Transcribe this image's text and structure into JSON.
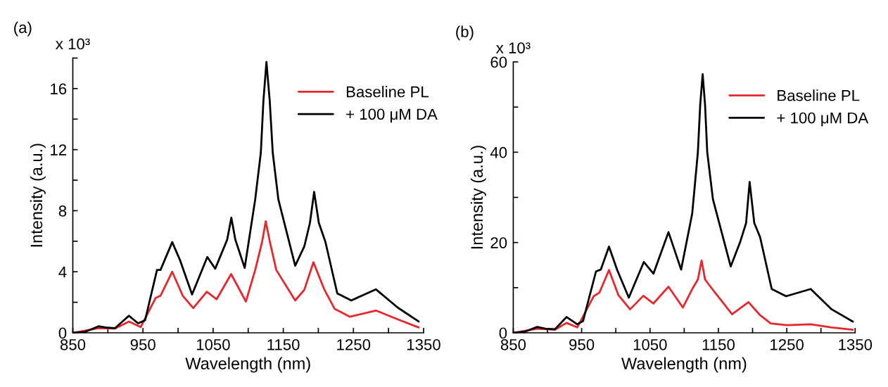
{
  "chart_data": [
    {
      "type": "line",
      "title": "(a)",
      "xlabel": "Wavelength (nm)",
      "ylabel": "Intensity (a.u.)",
      "annotations": [
        "x 10³"
      ],
      "xlim": [
        850,
        1350
      ],
      "xticks": [
        850,
        {
          "value": 900,
          "label": null
        },
        950,
        {
          "value": 1000,
          "label": null
        },
        1050,
        {
          "value": 1100,
          "label": null
        },
        1150,
        {
          "value": 1200,
          "label": null
        },
        1250,
        {
          "value": 1300,
          "label": null
        },
        1350
      ],
      "ylim": [
        0,
        18
      ],
      "yticks": [
        0,
        {
          "value": 2,
          "label": null
        },
        4,
        {
          "value": 6,
          "label": null
        },
        8,
        {
          "value": 10,
          "label": null
        },
        12,
        {
          "value": 14,
          "label": null
        },
        16,
        {
          "value": 18,
          "label": null
        }
      ],
      "grid": false,
      "legend": "top right",
      "marker": "none",
      "line_style": "solid",
      "series": [
        {
          "name": "Baseline PL",
          "color": "#e8262b",
          "x": [
            850,
            886.7,
            910,
            930,
            946.7,
            968,
            975,
            991.7,
            1006.7,
            1021.7,
            1041,
            1055,
            1075.7,
            1096.7,
            1110,
            1120,
            1125,
            1130.7,
            1140,
            1167,
            1180,
            1193,
            1208,
            1223,
            1245,
            1282,
            1313,
            1343
          ],
          "values": [
            0,
            0.31,
            0.28,
            0.74,
            0.38,
            2.28,
            2.43,
            4.0,
            2.43,
            1.62,
            2.69,
            2.2,
            3.85,
            2.05,
            4.12,
            6.0,
            7.31,
            6.0,
            4.12,
            2.12,
            2.82,
            4.62,
            2.89,
            1.58,
            1.05,
            1.46,
            0.89,
            0.35
          ]
        },
        {
          "name": "+ 100 μM DA",
          "color": "#000000",
          "x": [
            850,
            866.7,
            886.7,
            896.7,
            910,
            930,
            943,
            953,
            970,
            975,
            991.7,
            1003,
            1020,
            1041.7,
            1053,
            1070,
            1076,
            1081.7,
            1095,
            1110,
            1118,
            1121.7,
            1126,
            1130.7,
            1135,
            1143,
            1167,
            1180,
            1188,
            1194,
            1200.7,
            1210,
            1227,
            1247,
            1282,
            1313,
            1343
          ],
          "values": [
            0,
            0.05,
            0.43,
            0.35,
            0.3,
            1.12,
            0.62,
            0.82,
            4.12,
            4.12,
            5.94,
            4.74,
            2.51,
            4.97,
            4.2,
            6.1,
            7.54,
            6.1,
            4.25,
            8.74,
            11.8,
            15.2,
            17.74,
            15.2,
            11.8,
            8.74,
            4.4,
            5.66,
            7.2,
            9.23,
            7.2,
            5.97,
            2.58,
            2.12,
            2.85,
            1.66,
            0.74
          ]
        }
      ]
    },
    {
      "type": "line",
      "title": "(b)",
      "xlabel": "Wavelength (nm)",
      "ylabel": "Intensity (a.u.)",
      "annotations": [
        "x 10³"
      ],
      "xlim": [
        850,
        1350
      ],
      "xticks": [
        850,
        {
          "value": 900,
          "label": null
        },
        950,
        {
          "value": 1000,
          "label": null
        },
        1050,
        {
          "value": 1100,
          "label": null
        },
        1150,
        {
          "value": 1200,
          "label": null
        },
        1250,
        {
          "value": 1300,
          "label": null
        },
        1350
      ],
      "ylim": [
        0,
        60
      ],
      "yticks": [
        0,
        {
          "value": 10,
          "label": null
        },
        20,
        {
          "value": 30,
          "label": null
        },
        40,
        {
          "value": 50,
          "label": null
        },
        60
      ],
      "grid": false,
      "legend": "top right",
      "marker": "none",
      "line_style": "solid",
      "series": [
        {
          "name": "Baseline PL",
          "color": "#e8262b",
          "x": [
            850,
            885,
            911,
            928,
            943.6,
            967.6,
            976,
            990,
            1003.6,
            1020.8,
            1040.3,
            1055,
            1077,
            1098,
            1111.7,
            1120,
            1125.4,
            1130.5,
            1141,
            1170,
            1194,
            1211,
            1226.5,
            1250.5,
            1285,
            1315.7,
            1346.6
          ],
          "values": [
            0,
            0.9,
            0.7,
            2.2,
            1.2,
            8.1,
            8.9,
            13.9,
            8.4,
            5.2,
            8.2,
            6.5,
            10.2,
            5.6,
            9.7,
            11.8,
            16.0,
            11.8,
            9.7,
            4.1,
            6.8,
            3.9,
            2.1,
            1.7,
            1.9,
            1.2,
            0.7
          ]
        },
        {
          "name": "+ 100 μM DA",
          "color": "#000000",
          "x": [
            850,
            866,
            885,
            897,
            911,
            928,
            943.6,
            952,
            971,
            978,
            990,
            1002,
            1019,
            1041,
            1055,
            1077,
            1095.5,
            1111.7,
            1120,
            1123.4,
            1127,
            1130.5,
            1133.7,
            1142,
            1168,
            1182,
            1190.5,
            1195.7,
            1202.5,
            1211,
            1228,
            1249,
            1285,
            1315.7,
            1346.6
          ],
          "values": [
            0,
            0.2,
            1.3,
            0.9,
            0.8,
            3.5,
            1.9,
            2.6,
            13.6,
            14.0,
            19.1,
            13.9,
            7.8,
            15.7,
            13.1,
            22.3,
            14.0,
            26.4,
            40,
            50.5,
            57.3,
            50.5,
            40,
            29.6,
            14.7,
            20.2,
            24.3,
            33.4,
            24.3,
            21.2,
            9.7,
            8.1,
            9.7,
            5.2,
            2.5
          ]
        }
      ]
    }
  ]
}
